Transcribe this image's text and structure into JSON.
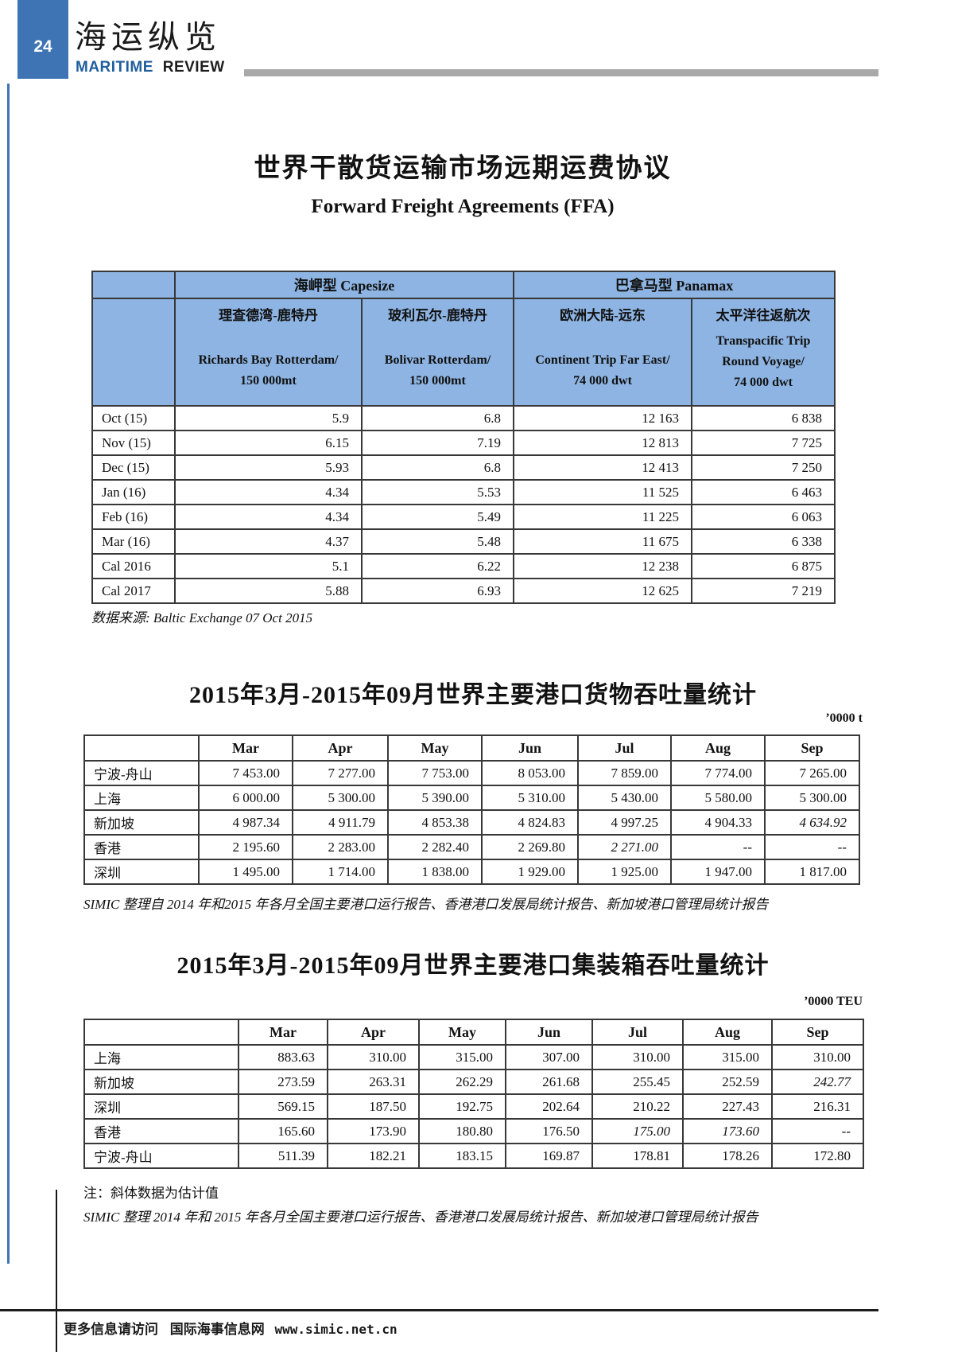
{
  "header": {
    "page_number": "24",
    "masthead_cn": "海运纵览",
    "masthead_en_primary": "MARITIME",
    "masthead_en_secondary": "REVIEW"
  },
  "colors": {
    "accent_blue": "#3E74B4",
    "table_header_blue": "#8DB4E2",
    "masthead_blue": "#1F5E9E",
    "bar_gray": "#A9A9A9"
  },
  "section_ffa": {
    "title_cn": "世界干散货运输市场远期运费协议",
    "title_en": "Forward Freight Agreements (FFA)",
    "source": "数据来源: Baltic Exchange 07 Oct 2015",
    "table": {
      "groups": [
        {
          "label": "海岬型 Capesize",
          "span": 2
        },
        {
          "label": "巴拿马型 Panamax",
          "span": 2
        }
      ],
      "columns": [
        {
          "cn": "理查德湾-鹿特丹",
          "en": [
            "Richards Bay Rotterdam/"
          ],
          "unit": "150 000mt"
        },
        {
          "cn": "玻利瓦尔-鹿特丹",
          "en": [
            "Bolivar Rotterdam/"
          ],
          "unit": "150 000mt"
        },
        {
          "cn": "欧洲大陆-远东",
          "en": [
            "Continent Trip Far East/"
          ],
          "unit": "74 000 dwt"
        },
        {
          "cn": "太平洋往返航次",
          "en": [
            "Transpacific Trip",
            "Round Voyage/"
          ],
          "unit": "74 000 dwt"
        }
      ],
      "rows": [
        {
          "label": "Oct (15)",
          "values": [
            "5.9",
            "6.8",
            "12 163",
            "6 838"
          ]
        },
        {
          "label": "Nov (15)",
          "values": [
            "6.15",
            "7.19",
            "12 813",
            "7 725"
          ]
        },
        {
          "label": "Dec (15)",
          "values": [
            "5.93",
            "6.8",
            "12 413",
            "7 250"
          ]
        },
        {
          "label": "Jan (16)",
          "values": [
            "4.34",
            "5.53",
            "11 525",
            "6 463"
          ]
        },
        {
          "label": "Feb (16)",
          "values": [
            "4.34",
            "5.49",
            "11 225",
            "6 063"
          ]
        },
        {
          "label": "Mar (16)",
          "values": [
            "4.37",
            "5.48",
            "11 675",
            "6 338"
          ]
        },
        {
          "label": "Cal 2016",
          "values": [
            "5.1",
            "6.22",
            "12 238",
            "6 875"
          ]
        },
        {
          "label": "Cal 2017",
          "values": [
            "5.88",
            "6.93",
            "12 625",
            "7 219"
          ]
        }
      ]
    }
  },
  "section_cargo": {
    "title": "2015年3月-2015年09月世界主要港口货物吞吐量统计",
    "unit": "’0000  t",
    "note": "SIMIC 整理自 2014 年和2015 年各月全国主要港口运行报告、香港港口发展局统计报告、新加坡港口管理局统计报告",
    "table": {
      "months": [
        "Mar",
        "Apr",
        "May",
        "Jun",
        "Jul",
        "Aug",
        "Sep"
      ],
      "rows": [
        {
          "label": "宁波-舟山",
          "values": [
            "7 453.00",
            "7 277.00",
            "7 753.00",
            "8 053.00",
            "7 859.00",
            "7 774.00",
            "7 265.00"
          ]
        },
        {
          "label": "上海",
          "values": [
            "6 000.00",
            "5 300.00",
            "5 390.00",
            "5 310.00",
            "5 430.00",
            "5 580.00",
            "5 300.00"
          ]
        },
        {
          "label": "新加坡",
          "values": [
            "4 987.34",
            "4 911.79",
            "4 853.38",
            "4 824.83",
            "4 997.25",
            "4 904.33",
            {
              "v": "4 634.92",
              "italic": true
            }
          ]
        },
        {
          "label": "香港",
          "values": [
            "2 195.60",
            "2 283.00",
            "2 282.40",
            "2 269.80",
            {
              "v": "2 271.00",
              "italic": true
            },
            "--",
            "--"
          ]
        },
        {
          "label": "深圳",
          "values": [
            "1 495.00",
            "1 714.00",
            "1 838.00",
            "1 929.00",
            "1 925.00",
            "1 947.00",
            "1 817.00"
          ]
        }
      ]
    }
  },
  "section_container": {
    "title": "2015年3月-2015年09月世界主要港口集装箱吞吐量统计",
    "unit": "’0000 TEU",
    "note_estimate": "注：斜体数据为估计值",
    "note_source": "SIMIC 整理 2014 年和 2015 年各月全国主要港口运行报告、香港港口发展局统计报告、新加坡港口管理局统计报告",
    "table": {
      "months": [
        "Mar",
        "Apr",
        "May",
        "Jun",
        "Jul",
        "Aug",
        "Sep"
      ],
      "rows": [
        {
          "label": "上海",
          "values": [
            "883.63",
            "310.00",
            "315.00",
            "307.00",
            "310.00",
            "315.00",
            "310.00"
          ]
        },
        {
          "label": "新加坡",
          "values": [
            "273.59",
            "263.31",
            "262.29",
            "261.68",
            "255.45",
            "252.59",
            {
              "v": "242.77",
              "italic": true
            }
          ]
        },
        {
          "label": "深圳",
          "values": [
            "569.15",
            "187.50",
            "192.75",
            "202.64",
            "210.22",
            "227.43",
            "216.31"
          ]
        },
        {
          "label": "香港",
          "values": [
            "165.60",
            "173.90",
            "180.80",
            "176.50",
            {
              "v": "175.00",
              "italic": true
            },
            {
              "v": "173.60",
              "italic": true
            },
            "--"
          ]
        },
        {
          "label": "宁波-舟山",
          "values": [
            "511.39",
            "182.21",
            "183.15",
            "169.87",
            "178.81",
            "178.26",
            "172.80"
          ]
        }
      ]
    }
  },
  "footer": {
    "visit_text": "更多信息请访问",
    "site_name": "国际海事信息网",
    "url": "www.simic.net.cn"
  }
}
